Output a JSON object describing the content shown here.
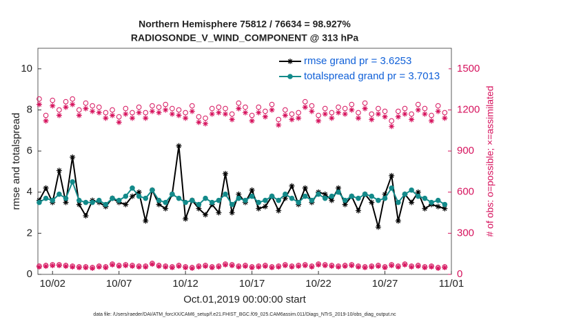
{
  "chart_data": {
    "type": "line",
    "title": "Northern Hemisphere 75812 / 76634 = 98.927%",
    "subtitle": "RADIOSONDE_V_WIND_COMPONENT @ 313 hPa",
    "x_label": "Oct.01,2019 00:00:00 start",
    "y_label": "rmse and totalspread",
    "y2_label": "# of obs: o=possible; ×=assimilated",
    "footnote": "data file: /Users/raeder/DAI/ATM_forcXX/CAM6_setup/f.e21.FHIST_BGC.f09_025.CAM6assim.011/Diags_NTrS_2019-10/obs_diag_output.nc",
    "legend": "northeast",
    "xlim": [
      -0.1,
      31
    ],
    "xticks": [
      {
        "value": 1,
        "label": "10/02"
      },
      {
        "value": 6,
        "label": "10/07"
      },
      {
        "value": 11,
        "label": "10/12"
      },
      {
        "value": 16,
        "label": "10/17"
      },
      {
        "value": 21,
        "label": "10/22"
      },
      {
        "value": 26,
        "label": "10/27"
      },
      {
        "value": 31,
        "label": "11/01"
      }
    ],
    "ylim": [
      0,
      11
    ],
    "yticks": [
      0,
      2,
      4,
      6,
      8,
      10
    ],
    "y2lim": [
      0,
      1650
    ],
    "y2ticks": [
      0,
      300,
      600,
      900,
      1200,
      1500
    ],
    "x": [
      0,
      0.5,
      1,
      1.5,
      2,
      2.5,
      3,
      3.5,
      4,
      4.5,
      5,
      5.5,
      6,
      6.5,
      7,
      7.5,
      8,
      8.5,
      9,
      9.5,
      10,
      10.5,
      11,
      11.5,
      12,
      12.5,
      13,
      13.5,
      14,
      14.5,
      15,
      15.5,
      16,
      16.5,
      17,
      17.5,
      18,
      18.5,
      19,
      19.5,
      20,
      20.5,
      21,
      21.5,
      22,
      22.5,
      23,
      23.5,
      24,
      24.5,
      25,
      25.5,
      26,
      26.5,
      27,
      27.5,
      28,
      28.5,
      29,
      29.5,
      30,
      30.5
    ],
    "series": [
      {
        "name": "rmse grand pr = 3.6253",
        "color": "#000000",
        "marker": "*",
        "line": true,
        "values": [
          3.6,
          4.2,
          3.5,
          5.05,
          3.5,
          5.7,
          3.4,
          2.85,
          3.6,
          3.5,
          3.3,
          3.7,
          3.5,
          3.4,
          3.8,
          4.0,
          2.6,
          4.1,
          3.4,
          3.2,
          3.9,
          6.25,
          2.7,
          3.6,
          3.2,
          2.9,
          3.4,
          3.0,
          4.9,
          3.0,
          3.9,
          3.5,
          4.1,
          3.2,
          3.3,
          3.8,
          3.1,
          3.7,
          4.3,
          3.4,
          4.2,
          3.5,
          4.0,
          3.9,
          3.6,
          4.2,
          3.4,
          3.8,
          3.1,
          3.9,
          3.5,
          2.3,
          3.9,
          4.8,
          2.6,
          3.9,
          3.5,
          4.0,
          3.2,
          3.4,
          3.3,
          3.2
        ]
      },
      {
        "name": "totalspread grand pr = 3.7013",
        "color": "#138a8a",
        "marker": "o-filled",
        "line": true,
        "values": [
          3.5,
          3.7,
          3.6,
          3.9,
          3.7,
          4.5,
          3.6,
          3.5,
          3.5,
          3.6,
          3.4,
          3.7,
          3.6,
          3.8,
          4.2,
          3.8,
          3.7,
          4.1,
          3.6,
          3.5,
          3.9,
          3.7,
          3.5,
          3.6,
          3.4,
          3.7,
          3.5,
          3.6,
          3.9,
          3.4,
          3.7,
          3.6,
          3.8,
          3.5,
          3.6,
          3.8,
          3.6,
          3.9,
          3.7,
          3.5,
          3.8,
          3.6,
          3.9,
          3.7,
          3.8,
          4.0,
          3.6,
          3.8,
          3.7,
          3.9,
          3.8,
          3.6,
          3.7,
          4.2,
          3.5,
          3.9,
          4.1,
          3.8,
          3.7,
          3.5,
          3.6,
          3.4
        ]
      },
      {
        "color": "#d6125d",
        "marker": "o",
        "line": false,
        "axis": "y2",
        "values": [
          1280,
          1160,
          1270,
          1200,
          1260,
          1280,
          1200,
          1250,
          1230,
          1220,
          1180,
          1200,
          1150,
          1210,
          1180,
          1220,
          1180,
          1230,
          1220,
          1240,
          1210,
          1200,
          1180,
          1230,
          1150,
          1140,
          1210,
          1220,
          1210,
          1170,
          1250,
          1220,
          1160,
          1220,
          1190,
          1240,
          1130,
          1200,
          1170,
          1180,
          1260,
          1230,
          1160,
          1210,
          1180,
          1220,
          1210,
          1240,
          1180,
          1250,
          1170,
          1210,
          1190,
          1120,
          1190,
          1210,
          1170,
          1240,
          1210,
          1160,
          1230,
          1180
        ]
      },
      {
        "color": "#d6125d",
        "marker": "*",
        "line": false,
        "axis": "y2",
        "values": [
          1240,
          1120,
          1230,
          1160,
          1220,
          1240,
          1160,
          1210,
          1190,
          1180,
          1140,
          1160,
          1110,
          1170,
          1140,
          1180,
          1140,
          1190,
          1180,
          1200,
          1170,
          1160,
          1140,
          1190,
          1110,
          1100,
          1170,
          1180,
          1170,
          1130,
          1210,
          1180,
          1120,
          1180,
          1150,
          1200,
          1090,
          1160,
          1130,
          1140,
          1220,
          1190,
          1120,
          1170,
          1140,
          1180,
          1170,
          1200,
          1140,
          1210,
          1130,
          1170,
          1150,
          1080,
          1150,
          1170,
          1130,
          1200,
          1170,
          1120,
          1190,
          1140
        ]
      },
      {
        "color": "#d6125d",
        "marker": "o",
        "line": false,
        "axis": "y2",
        "values": [
          60,
          65,
          70,
          70,
          65,
          60,
          55,
          55,
          50,
          60,
          55,
          75,
          65,
          70,
          65,
          60,
          60,
          80,
          65,
          60,
          55,
          65,
          55,
          50,
          60,
          65,
          55,
          60,
          75,
          70,
          60,
          65,
          55,
          60,
          65,
          55,
          60,
          70,
          60,
          65,
          70,
          60,
          75,
          70,
          65,
          60,
          65,
          70,
          60,
          55,
          60,
          65,
          55,
          70,
          60,
          75,
          60,
          65,
          55,
          60,
          50,
          55
        ]
      },
      {
        "color": "#d6125d",
        "marker": "*",
        "line": false,
        "axis": "y2",
        "values": [
          55,
          60,
          65,
          65,
          60,
          55,
          50,
          50,
          45,
          55,
          50,
          70,
          60,
          65,
          60,
          55,
          55,
          75,
          60,
          55,
          50,
          60,
          50,
          45,
          55,
          60,
          50,
          55,
          70,
          65,
          55,
          60,
          50,
          55,
          60,
          50,
          55,
          65,
          55,
          60,
          65,
          55,
          70,
          65,
          60,
          55,
          60,
          65,
          55,
          50,
          55,
          60,
          50,
          65,
          55,
          70,
          55,
          60,
          50,
          55,
          45,
          50
        ]
      }
    ]
  }
}
